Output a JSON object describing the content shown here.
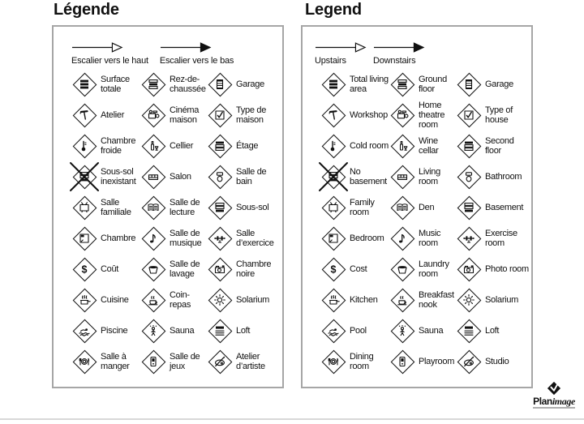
{
  "colors": {
    "ink": "#111111",
    "panel_border": "#a6a6a6",
    "page_rule": "#d8d8d8",
    "logo_black": "#111111"
  },
  "panels": [
    {
      "title": "Légende",
      "arrows": [
        {
          "icon": "stairs-up-arrow",
          "label": "Escalier vers le haut"
        },
        {
          "icon": "stairs-down-arrow",
          "label": "Escalier vers le bas"
        }
      ],
      "items": [
        {
          "icon": "layers-all",
          "label": "Surface totale"
        },
        {
          "icon": "layers-mid",
          "label": "Rez-de-chaussée"
        },
        {
          "icon": "garage",
          "label": "Garage"
        },
        {
          "icon": "hammer",
          "label": "Atelier"
        },
        {
          "icon": "projector",
          "label": "Cinéma maison"
        },
        {
          "icon": "house-check",
          "label": "Type de maison"
        },
        {
          "icon": "thermometer",
          "label": "Chambre froide"
        },
        {
          "icon": "wine",
          "label": "Cellier"
        },
        {
          "icon": "layers-top",
          "label": "Étage"
        },
        {
          "icon": "no-basement",
          "label": "Sous-sol inexistant"
        },
        {
          "icon": "sofa",
          "label": "Salon"
        },
        {
          "icon": "toilet",
          "label": "Salle de bain"
        },
        {
          "icon": "tv",
          "label": "Salle familiale"
        },
        {
          "icon": "book",
          "label": "Salle de lecture"
        },
        {
          "icon": "layers-bottom",
          "label": "Sous-sol"
        },
        {
          "icon": "bed",
          "label": "Chambre"
        },
        {
          "icon": "music-note",
          "label": "Salle de musique"
        },
        {
          "icon": "barbell",
          "label": "Salle d’exercice"
        },
        {
          "icon": "dollar",
          "label": "Coût"
        },
        {
          "icon": "basket",
          "label": "Salle de lavage"
        },
        {
          "icon": "camera",
          "label": "Chambre noire"
        },
        {
          "icon": "pot",
          "label": "Cuisine"
        },
        {
          "icon": "cup",
          "label": "Coin-repas"
        },
        {
          "icon": "sun",
          "label": "Solarium"
        },
        {
          "icon": "swimmer",
          "label": "Piscine"
        },
        {
          "icon": "sauna-person",
          "label": "Sauna"
        },
        {
          "icon": "layers-loft",
          "label": "Loft"
        },
        {
          "icon": "plate",
          "label": "Salle à manger"
        },
        {
          "icon": "arcade",
          "label": "Salle de jeux"
        },
        {
          "icon": "palette",
          "label": "Atelier d’artiste"
        }
      ]
    },
    {
      "title": "Legend",
      "arrows": [
        {
          "icon": "stairs-up-arrow",
          "label": "Upstairs"
        },
        {
          "icon": "stairs-down-arrow",
          "label": "Downstairs"
        }
      ],
      "items": [
        {
          "icon": "layers-all",
          "label": "Total living area"
        },
        {
          "icon": "layers-mid",
          "label": "Ground floor"
        },
        {
          "icon": "garage",
          "label": "Garage"
        },
        {
          "icon": "hammer",
          "label": "Workshop"
        },
        {
          "icon": "projector",
          "label": "Home theatre room"
        },
        {
          "icon": "house-check",
          "label": "Type of house"
        },
        {
          "icon": "thermometer",
          "label": "Cold room"
        },
        {
          "icon": "wine",
          "label": "Wine cellar"
        },
        {
          "icon": "layers-top",
          "label": "Second floor"
        },
        {
          "icon": "no-basement",
          "label": "No basement"
        },
        {
          "icon": "sofa",
          "label": "Living room"
        },
        {
          "icon": "toilet",
          "label": "Bathroom"
        },
        {
          "icon": "tv",
          "label": "Family room"
        },
        {
          "icon": "book",
          "label": "Den"
        },
        {
          "icon": "layers-bottom",
          "label": "Basement"
        },
        {
          "icon": "bed",
          "label": "Bedroom"
        },
        {
          "icon": "music-note",
          "label": "Music room"
        },
        {
          "icon": "barbell",
          "label": "Exercise room"
        },
        {
          "icon": "dollar",
          "label": "Cost"
        },
        {
          "icon": "basket",
          "label": "Laundry room"
        },
        {
          "icon": "camera",
          "label": "Photo room"
        },
        {
          "icon": "pot",
          "label": "Kitchen"
        },
        {
          "icon": "cup",
          "label": "Breakfast nook"
        },
        {
          "icon": "sun",
          "label": "Solarium"
        },
        {
          "icon": "swimmer",
          "label": "Pool"
        },
        {
          "icon": "sauna-person",
          "label": "Sauna"
        },
        {
          "icon": "layers-loft",
          "label": "Loft"
        },
        {
          "icon": "plate",
          "label": "Dining room"
        },
        {
          "icon": "arcade",
          "label": "Playroom"
        },
        {
          "icon": "palette",
          "label": "Studio"
        }
      ]
    }
  ],
  "logo": {
    "brand_bold": "Plan",
    "brand_italic": "image"
  }
}
